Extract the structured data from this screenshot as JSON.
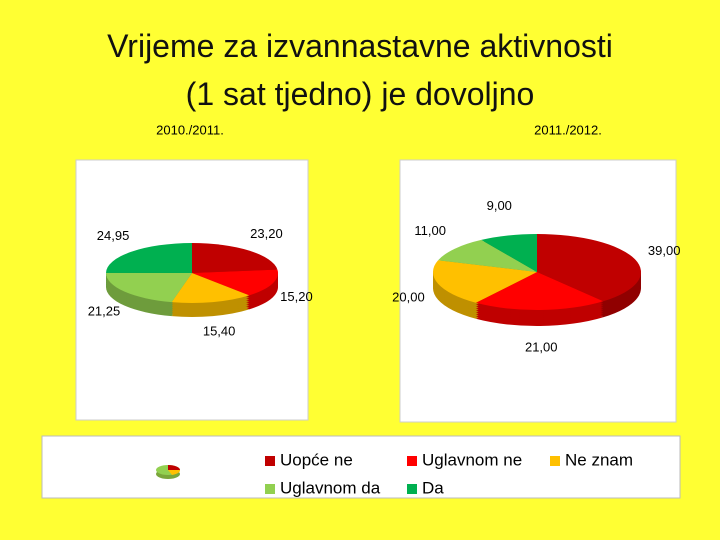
{
  "title": "Vrijeme za izvannastavne aktivnosti (1 sat tjedno) je dovoljno",
  "chart_data": [
    {
      "type": "pie",
      "title": "2010./2011.",
      "categories": [
        "Uopće ne",
        "Uglavnom ne",
        "Ne znam",
        "Uglavnom da",
        "Da"
      ],
      "colors": [
        "#c00000",
        "#ff0000",
        "#ffc000",
        "#92d050",
        "#00b050"
      ],
      "values": [
        23.2,
        15.2,
        15.4,
        21.25,
        24.95
      ],
      "value_labels": [
        "23,20",
        "15,20",
        "15,40",
        "21,25",
        "24,95"
      ]
    },
    {
      "type": "pie",
      "title": "2011./2012.",
      "categories": [
        "Uopće ne",
        "Uglavnom ne",
        "Ne znam",
        "Uglavnom da",
        "Da"
      ],
      "colors": [
        "#c00000",
        "#ff0000",
        "#ffc000",
        "#92d050",
        "#00b050"
      ],
      "values": [
        39,
        21,
        20,
        11,
        9
      ],
      "value_labels": [
        "39,00",
        "21,00",
        "20,00",
        "11,00",
        "9,00"
      ]
    }
  ]
}
